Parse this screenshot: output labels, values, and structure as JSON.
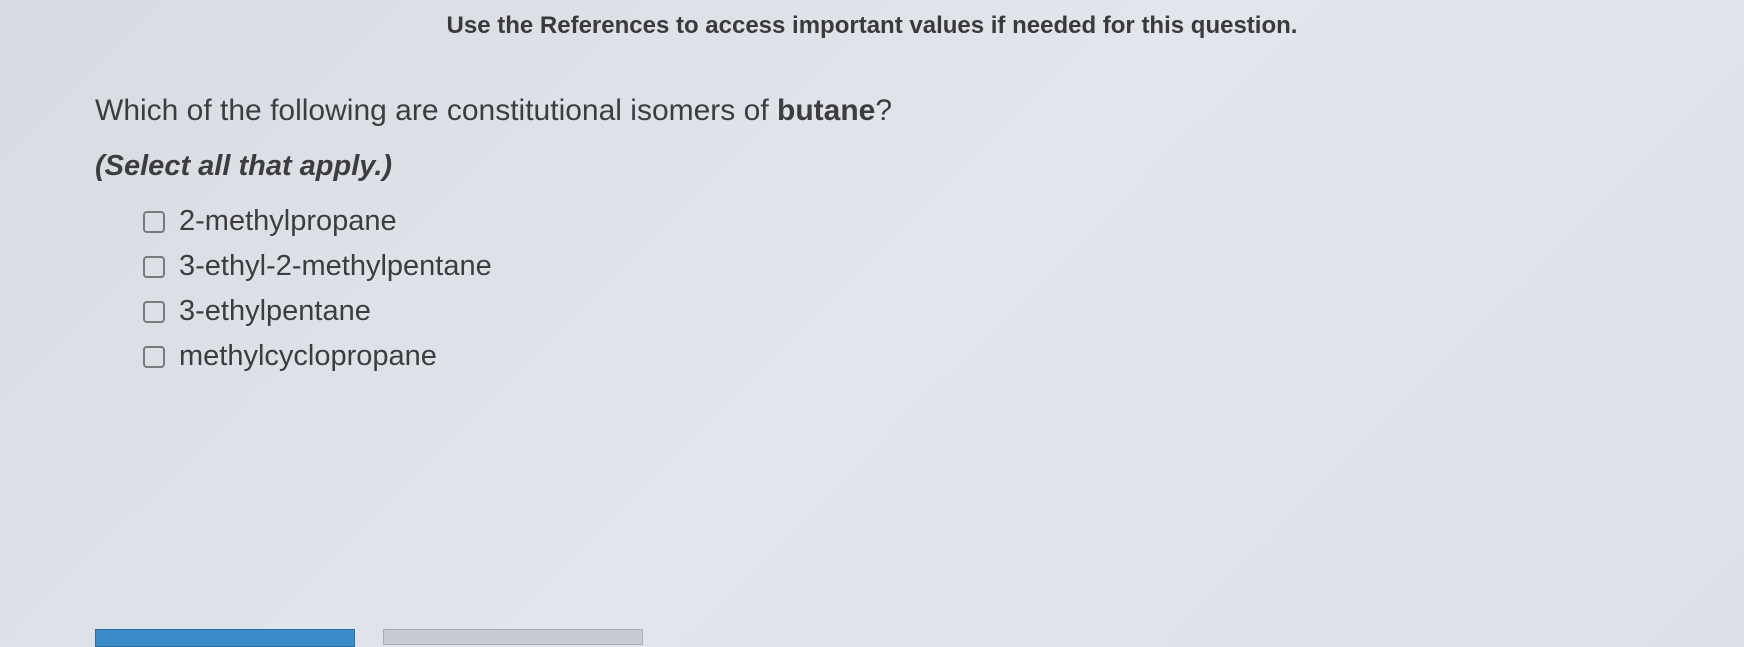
{
  "reference_note": "Use the References to access important values if needed for this question.",
  "question": {
    "text_before": "Which of the following are constitutional isomers of ",
    "bold_word": "butane",
    "text_after": "?"
  },
  "instruction": "(Select all that apply.)",
  "options": [
    {
      "label": "2-methylpropane",
      "checked": false
    },
    {
      "label": "3-ethyl-2-methylpentane",
      "checked": false
    },
    {
      "label": "3-ethylpentane",
      "checked": false
    },
    {
      "label": "methylcyclopropane",
      "checked": false
    }
  ],
  "colors": {
    "text_primary": "#3d3d3f",
    "checkbox_border": "#7a7a7c",
    "button_primary": "#3a8bc9",
    "button_secondary": "#c8ccd2",
    "background_start": "#d8dce2",
    "background_end": "#dde1e7"
  }
}
